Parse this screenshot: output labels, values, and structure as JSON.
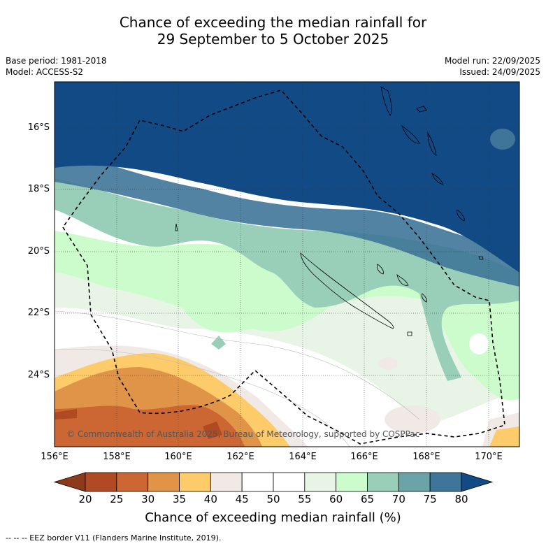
{
  "title": {
    "line1": "Chance of exceeding the median rainfall for",
    "line2": "29 September to 5 October 2025"
  },
  "meta": {
    "base_period": "Base period: 1981-2018",
    "model": "Model: ACCESS-S2",
    "model_run": "Model run: 22/09/2025",
    "issued": "Issued: 24/09/2025"
  },
  "map": {
    "lat_labels": [
      "16°S",
      "18°S",
      "20°S",
      "22°S",
      "24°S"
    ],
    "lon_labels": [
      "156°E",
      "158°E",
      "160°E",
      "162°E",
      "164°E",
      "166°E",
      "168°E",
      "170°E"
    ],
    "copyright": "© Commonwealth of Australia 2025, Bureau of Meteorology, supported by COSPPac"
  },
  "colorbar": {
    "ticks": [
      "20",
      "25",
      "30",
      "35",
      "40",
      "45",
      "50",
      "55",
      "60",
      "65",
      "70",
      "75",
      "80"
    ],
    "title": "Chance of exceeding median rainfall (%)",
    "colors": [
      "#8c3a1c",
      "#b04a22",
      "#cc6633",
      "#e09447",
      "#fecb6a",
      "#f0e9e6",
      "#ffffff",
      "#ffffff",
      "#e8f5e6",
      "#ccfccc",
      "#99cfb8",
      "#6aa3a8",
      "#3f7598",
      "#124a86"
    ]
  },
  "legend": {
    "label": "--  --  -- EEZ border V11 (Flanders Marine Institute, 2019)."
  }
}
